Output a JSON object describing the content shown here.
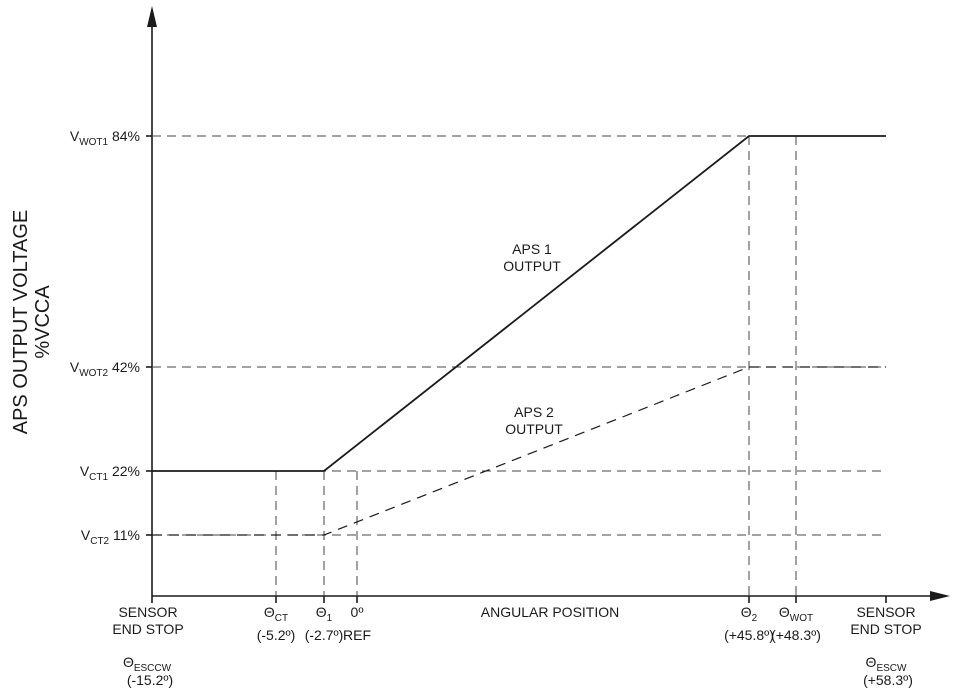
{
  "chart_data": {
    "type": "line",
    "ylabel_line1": "APS OUTPUT VOLTAGE",
    "ylabel_line2": "%VCCA",
    "xlabel": "ANGULAR POSITION",
    "x_unit": "degrees",
    "y_unit": "%VCCA",
    "xlim": [
      -15.2,
      58.3
    ],
    "ylim": [
      0,
      100
    ],
    "series": [
      {
        "label_line1": "APS 1",
        "label_line2": "OUTPUT",
        "style": "solid",
        "points": [
          [
            -15.2,
            22
          ],
          [
            -2.7,
            22
          ],
          [
            45.8,
            84
          ],
          [
            58.3,
            84
          ]
        ]
      },
      {
        "label_line1": "APS 2",
        "label_line2": "OUTPUT",
        "style": "dashed",
        "points": [
          [
            -15.2,
            11
          ],
          [
            -2.7,
            11
          ],
          [
            45.8,
            42
          ],
          [
            58.3,
            42
          ]
        ]
      }
    ],
    "y_markers": [
      {
        "main": "V",
        "sub": "WOT1",
        "pct": "84%",
        "value": 84
      },
      {
        "main": "V",
        "sub": "WOT2",
        "pct": "42%",
        "value": 42
      },
      {
        "main": "V",
        "sub": "CT1",
        "pct": "22%",
        "value": 22
      },
      {
        "main": "V",
        "sub": "CT2",
        "pct": "11%",
        "value": 11
      }
    ],
    "x_markers": [
      {
        "key": "theta_ct",
        "main": "Θ",
        "sub": "CT",
        "value_text": "(-5.2º)",
        "x": -5.2,
        "top_pct": 22
      },
      {
        "key": "theta_1",
        "main": "Θ",
        "sub": "1",
        "value_text": "(-2.7º)",
        "x": -2.7,
        "top_pct": 22
      },
      {
        "key": "zero_ref",
        "main": "0º",
        "sub": "",
        "value_text": "REF",
        "x": 0,
        "top_pct": 22
      },
      {
        "key": "theta_2",
        "main": "Θ",
        "sub": "2",
        "value_text": "(+45.8º)",
        "x": 45.8,
        "top_pct": 84
      },
      {
        "key": "theta_wot",
        "main": "Θ",
        "sub": "WOT",
        "value_text": "(+48.3º)",
        "x": 48.3,
        "top_pct": 84
      }
    ],
    "end_stops": {
      "left": {
        "line1": "SENSOR",
        "line2": "END STOP",
        "main": "Θ",
        "sub": "ESCCW",
        "value_text": "(-15.2º)"
      },
      "right": {
        "line1": "SENSOR",
        "line2": "END STOP",
        "main": "Θ",
        "sub": "ESCW",
        "value_text": "(+58.3º)"
      }
    },
    "grid": false,
    "colors": {
      "ink": "#1a1a1a",
      "guides": "#444444",
      "background": "#ffffff"
    }
  }
}
